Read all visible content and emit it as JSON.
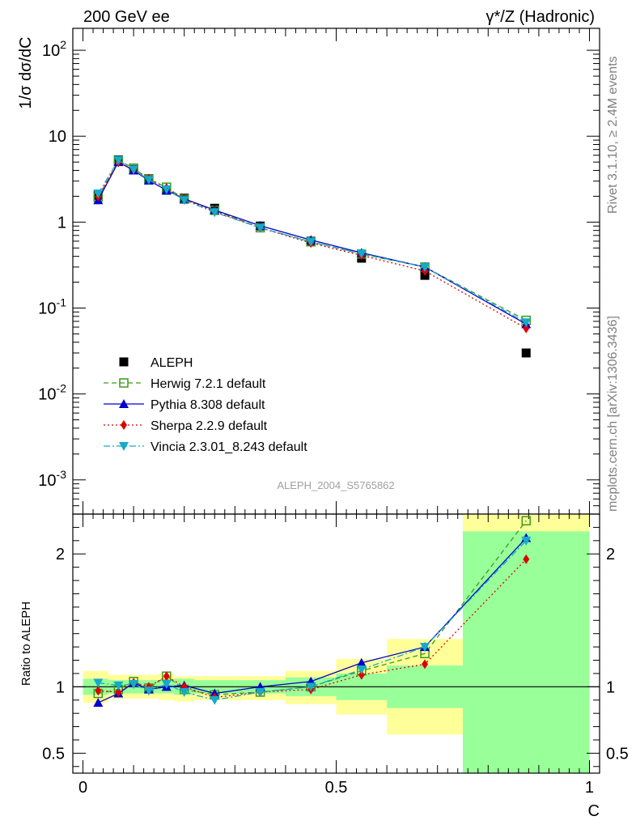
{
  "header": {
    "energy": "200 GeV ee",
    "process": "γ*/Z (Hadronic)"
  },
  "side_labels": {
    "rivet": "Rivet 3.1.10, ≥ 2.4M events",
    "source": "mcplots.cern.ch [arXiv:1306.3436]"
  },
  "analysis_tag": "ALEPH_2004_S5765862",
  "colors": {
    "data": "#000000",
    "herwig": "#3c9a1e",
    "pythia": "#0000cc",
    "sherpa": "#dd0000",
    "vincia": "#17a9c8",
    "band_inner": "#99ff99",
    "band_outer": "#ffff99"
  },
  "chart_data": [
    {
      "type": "scatter",
      "panel": "main",
      "ylabel": "1/σ  dσ/dC",
      "yscale": "log",
      "ylim": [
        0.0004,
        180
      ],
      "xlim": [
        -0.02,
        1.02
      ],
      "y_tick_labels": [
        "10^-3",
        "10^-2",
        "10^-1",
        "1",
        "10",
        "10^2"
      ],
      "legend": {
        "placement": "middle-left",
        "entries": [
          "ALEPH",
          "Herwig 7.2.1 default",
          "Pythia 8.308 default",
          "Sherpa 2.2.9 default",
          "Vincia 2.3.01_8.243 default"
        ]
      },
      "x": [
        0.03,
        0.07,
        0.1,
        0.13,
        0.165,
        0.2,
        0.26,
        0.35,
        0.45,
        0.55,
        0.675,
        0.875
      ],
      "series": [
        {
          "name": "ALEPH",
          "values": [
            2.05,
            5.3,
            4.1,
            3.2,
            2.35,
            1.9,
            1.45,
            0.9,
            0.6,
            0.38,
            0.24,
            0.03
          ]
        },
        {
          "name": "Herwig 7.2.1 default",
          "values": [
            1.95,
            5.2,
            4.25,
            3.15,
            2.55,
            1.85,
            1.37,
            0.86,
            0.59,
            0.425,
            0.3,
            0.072
          ]
        },
        {
          "name": "Pythia 8.308 default",
          "values": [
            1.8,
            5.0,
            4.0,
            3.05,
            2.35,
            1.87,
            1.38,
            0.91,
            0.62,
            0.44,
            0.3,
            0.065
          ]
        },
        {
          "name": "Sherpa 2.2.9 default",
          "values": [
            1.98,
            4.95,
            4.1,
            3.2,
            2.5,
            1.85,
            1.33,
            0.86,
            0.57,
            0.41,
            0.27,
            0.058
          ]
        },
        {
          "name": "Vincia 2.3.01_8.243 default",
          "values": [
            2.15,
            5.25,
            4.1,
            3.1,
            2.4,
            1.8,
            1.3,
            0.86,
            0.59,
            0.43,
            0.3,
            0.068
          ]
        }
      ]
    },
    {
      "type": "scatter",
      "panel": "ratio",
      "ylabel": "Ratio to ALEPH",
      "xlabel": "C",
      "ylim": [
        0.35,
        2.3
      ],
      "xlim": [
        -0.02,
        1.02
      ],
      "x_ticks": [
        0,
        0.5,
        1
      ],
      "x_tick_labels": [
        "0",
        "0.5",
        "1"
      ],
      "y_ticks": [
        0.5,
        1,
        2
      ],
      "y_tick_labels": [
        "0.5",
        "1",
        "2"
      ],
      "bands": {
        "bins": [
          [
            0.0,
            0.05
          ],
          [
            0.05,
            0.09
          ],
          [
            0.09,
            0.11
          ],
          [
            0.11,
            0.15
          ],
          [
            0.15,
            0.18
          ],
          [
            0.18,
            0.22
          ],
          [
            0.22,
            0.3
          ],
          [
            0.3,
            0.4
          ],
          [
            0.4,
            0.5
          ],
          [
            0.5,
            0.6
          ],
          [
            0.6,
            0.75
          ],
          [
            0.75,
            1.0
          ]
        ],
        "inner_lo": [
          0.94,
          0.95,
          0.95,
          0.95,
          0.95,
          0.94,
          0.95,
          0.95,
          0.93,
          0.9,
          0.84,
          0.35
        ],
        "inner_hi": [
          1.06,
          1.05,
          1.05,
          1.05,
          1.05,
          1.06,
          1.05,
          1.05,
          1.07,
          1.1,
          1.16,
          2.17
        ],
        "outer_lo": [
          0.88,
          0.91,
          0.91,
          0.91,
          0.9,
          0.89,
          0.9,
          0.9,
          0.87,
          0.79,
          0.64,
          0.35
        ],
        "outer_hi": [
          1.12,
          1.09,
          1.09,
          1.09,
          1.1,
          1.08,
          1.08,
          1.08,
          1.12,
          1.21,
          1.36,
          2.3
        ]
      },
      "x": [
        0.03,
        0.07,
        0.1,
        0.13,
        0.165,
        0.2,
        0.26,
        0.35,
        0.45,
        0.55,
        0.675,
        0.875
      ],
      "series": [
        {
          "name": "Herwig 7.2.1 default",
          "values": [
            0.95,
            0.98,
            1.04,
            0.99,
            1.08,
            0.98,
            0.94,
            0.96,
            1.0,
            1.12,
            1.25,
            2.25
          ]
        },
        {
          "name": "Pythia 8.308 default",
          "values": [
            0.88,
            0.95,
            1.03,
            0.98,
            1.0,
            1.01,
            0.95,
            1.0,
            1.04,
            1.18,
            1.3,
            2.12
          ]
        },
        {
          "name": "Sherpa 2.2.9 default",
          "values": [
            0.97,
            0.96,
            1.03,
            1.0,
            1.08,
            1.0,
            0.92,
            0.96,
            0.98,
            1.09,
            1.17,
            1.96
          ]
        },
        {
          "name": "Vincia 2.3.01_8.243 default",
          "values": [
            1.03,
            1.01,
            1.02,
            0.97,
            1.02,
            0.96,
            0.9,
            0.96,
            1.0,
            1.13,
            1.3,
            2.1
          ]
        }
      ]
    }
  ]
}
